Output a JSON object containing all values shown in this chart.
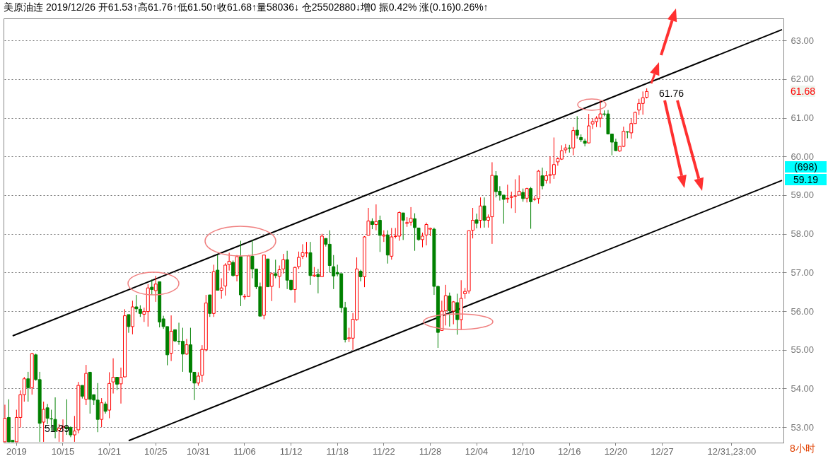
{
  "chart_data": {
    "type": "candlestick",
    "title": "美原油连 2019/12/26 开61.53↑高61.76↑低61.50↑收61.68↑量58036↓ 仓25502880↓增0 振0.42% 涨(0.16)0.26%↑",
    "categories": [
      null,
      null,
      null,
      "2019",
      null,
      null,
      null,
      null,
      null,
      null,
      null,
      null,
      null,
      null,
      null,
      "10/15",
      null,
      null,
      null,
      null,
      null,
      null,
      null,
      null,
      null,
      null,
      null,
      "10/21",
      null,
      null,
      null,
      null,
      null,
      null,
      null,
      null,
      null,
      null,
      null,
      "10/25",
      null,
      null,
      null,
      null,
      null,
      null,
      null,
      null,
      null,
      null,
      "10/31",
      null,
      null,
      null,
      null,
      null,
      null,
      null,
      null,
      null,
      null,
      null,
      "11/06",
      null,
      null,
      null,
      null,
      null,
      null,
      null,
      null,
      null,
      null,
      null,
      "11/12",
      null,
      null,
      null,
      null,
      null,
      null,
      null,
      null,
      null,
      null,
      null,
      "11/18",
      null,
      null,
      null,
      null,
      null,
      null,
      null,
      null,
      null,
      null,
      null,
      "11/22",
      null,
      null,
      null,
      null,
      null,
      null,
      null,
      null,
      null,
      null,
      null,
      "11/28",
      null,
      null,
      null,
      null,
      null,
      null,
      null,
      null,
      null,
      null,
      null,
      "12/04",
      null,
      null,
      null,
      null,
      null,
      null,
      null,
      null,
      null,
      null,
      null,
      "12/10",
      null,
      null,
      null,
      null,
      null,
      null,
      null,
      null,
      null,
      null,
      null,
      "12/16",
      null,
      null,
      null,
      null,
      null,
      null,
      null,
      null,
      null,
      null,
      null,
      "12/20",
      null,
      null,
      null,
      null,
      null,
      null,
      null,
      null,
      null,
      null,
      null,
      "12/27",
      null,
      null,
      null,
      null,
      null,
      null,
      null,
      null,
      null,
      null,
      null,
      null,
      null,
      null,
      null,
      null,
      null,
      "12/31,23:00",
      null,
      null,
      null,
      null,
      null,
      null,
      null,
      null,
      null,
      null,
      null,
      null,
      null
    ],
    "ohlc": [
      [
        52.62,
        53.58,
        52.62,
        53.23
      ],
      [
        53.25,
        53.72,
        52.62,
        52.62
      ],
      [
        52.66,
        52.66,
        52.62,
        52.62
      ],
      [
        52.62,
        53.45,
        52.62,
        53.25
      ],
      [
        53.25,
        53.95,
        52.99,
        53.84
      ],
      [
        53.84,
        54.3,
        53.66,
        54.25
      ],
      [
        54.25,
        54.43,
        53.66,
        54.02
      ],
      [
        54.02,
        54.92,
        53.84,
        54.9
      ],
      [
        54.87,
        54.9,
        54.2,
        54.23
      ],
      [
        54.23,
        54.43,
        52.62,
        53.1
      ],
      [
        53.13,
        53.66,
        52.62,
        53.46
      ],
      [
        53.5,
        53.6,
        53.08,
        53.23
      ],
      [
        53.22,
        53.45,
        52.9,
        53.21
      ],
      [
        53.2,
        53.77,
        52.71,
        52.9
      ],
      [
        52.92,
        53.08,
        52.62,
        52.97
      ],
      [
        53.0,
        53.2,
        52.62,
        53.01
      ],
      [
        53.0,
        53.72,
        52.8,
        52.97
      ],
      [
        52.99,
        53.02,
        52.74,
        52.8
      ],
      [
        52.8,
        53.29,
        52.62,
        52.9
      ],
      [
        52.93,
        54.17,
        52.84,
        54.08
      ],
      [
        54.08,
        54.08,
        53.74,
        53.8
      ],
      [
        53.72,
        54.61,
        53.57,
        54.39
      ],
      [
        54.42,
        54.43,
        53.35,
        53.72
      ],
      [
        53.84,
        53.84,
        53.57,
        53.7
      ],
      [
        53.7,
        54.14,
        52.87,
        53.2
      ],
      [
        53.2,
        53.75,
        53.0,
        53.63
      ],
      [
        53.6,
        53.66,
        53.35,
        53.41
      ],
      [
        53.44,
        54.42,
        53.23,
        54.13
      ],
      [
        54.17,
        54.78,
        53.87,
        54.29
      ],
      [
        54.29,
        54.3,
        53.96,
        54.11
      ],
      [
        54.12,
        54.54,
        53.61,
        54.29
      ],
      [
        54.3,
        56.05,
        54.29,
        55.88
      ],
      [
        55.91,
        55.91,
        55.44,
        55.6
      ],
      [
        55.6,
        56.27,
        55.4,
        56.11
      ],
      [
        56.11,
        56.42,
        55.97,
        56.06
      ],
      [
        56.05,
        56.15,
        55.85,
        55.94
      ],
      [
        55.92,
        56.09,
        55.72,
        55.99
      ],
      [
        55.99,
        56.7,
        55.6,
        56.6
      ],
      [
        56.62,
        56.82,
        56.42,
        56.56
      ],
      [
        56.53,
        56.91,
        56.24,
        56.7
      ],
      [
        56.76,
        56.76,
        55.58,
        55.72
      ],
      [
        55.8,
        55.88,
        55.54,
        55.6
      ],
      [
        55.6,
        55.6,
        54.6,
        54.87
      ],
      [
        54.91,
        55.89,
        54.71,
        55.48
      ],
      [
        55.52,
        55.52,
        55.2,
        55.23
      ],
      [
        55.22,
        55.7,
        55.13,
        55.21
      ],
      [
        55.22,
        55.57,
        54.43,
        54.89
      ],
      [
        54.89,
        55.28,
        54.87,
        55.13
      ],
      [
        55.13,
        55.57,
        54.19,
        54.42
      ],
      [
        54.42,
        54.42,
        53.7,
        54.14
      ],
      [
        54.14,
        54.42,
        54.07,
        54.32
      ],
      [
        54.34,
        55.12,
        54.17,
        55.01
      ],
      [
        55.0,
        56.42,
        54.96,
        56.21
      ],
      [
        56.42,
        56.42,
        55.85,
        55.94
      ],
      [
        55.94,
        57.2,
        55.85,
        57.02
      ],
      [
        57.06,
        57.45,
        56.54,
        56.54
      ],
      [
        56.54,
        56.85,
        56.32,
        56.6
      ],
      [
        56.65,
        57.24,
        56.4,
        57.19
      ],
      [
        57.2,
        57.51,
        57.05,
        57.29
      ],
      [
        57.26,
        57.31,
        56.89,
        56.92
      ],
      [
        56.92,
        57.45,
        56.77,
        57.41
      ],
      [
        57.41,
        57.82,
        56.13,
        56.42
      ],
      [
        56.37,
        56.44,
        56.3,
        56.38
      ],
      [
        56.38,
        57.45,
        56.38,
        57.43
      ],
      [
        57.42,
        57.84,
        56.85,
        57.09
      ],
      [
        57.09,
        57.09,
        56.57,
        56.63
      ],
      [
        56.63,
        56.74,
        55.87,
        55.87
      ],
      [
        55.89,
        57.45,
        55.79,
        57.45
      ],
      [
        57.35,
        57.35,
        56.63,
        56.63
      ],
      [
        56.64,
        57.0,
        56.26,
        56.97
      ],
      [
        56.97,
        57.33,
        56.85,
        56.92
      ],
      [
        56.9,
        57.18,
        56.6,
        57.07
      ],
      [
        57.09,
        57.48,
        56.97,
        57.33
      ],
      [
        57.33,
        57.56,
        56.57,
        56.8
      ],
      [
        56.8,
        56.8,
        56.53,
        56.56
      ],
      [
        56.56,
        57.15,
        56.22,
        57.13
      ],
      [
        57.15,
        57.54,
        57.09,
        57.39
      ],
      [
        57.42,
        57.73,
        57.35,
        57.51
      ],
      [
        57.5,
        57.79,
        57.39,
        57.51
      ],
      [
        57.51,
        57.79,
        56.68,
        56.92
      ],
      [
        56.91,
        57.14,
        56.88,
        56.93
      ],
      [
        56.95,
        57.09,
        56.46,
        56.89
      ],
      [
        56.89,
        58.0,
        56.89,
        57.94
      ],
      [
        57.88,
        57.88,
        57.67,
        57.73
      ],
      [
        57.73,
        58.09,
        57.0,
        57.18
      ],
      [
        57.15,
        57.45,
        56.57,
        56.91
      ],
      [
        57.0,
        57.2,
        56.9,
        56.96
      ],
      [
        56.97,
        56.97,
        55.96,
        56.09
      ],
      [
        56.09,
        56.24,
        55.19,
        55.26
      ],
      [
        55.29,
        55.57,
        55.2,
        55.31
      ],
      [
        55.3,
        55.95,
        55.0,
        55.79
      ],
      [
        55.78,
        57.39,
        55.75,
        57.09
      ],
      [
        57.03,
        57.07,
        56.77,
        56.89
      ],
      [
        56.89,
        57.94,
        56.62,
        57.92
      ],
      [
        57.96,
        58.67,
        57.96,
        58.33
      ],
      [
        58.32,
        58.4,
        58.12,
        58.24
      ],
      [
        58.24,
        58.76,
        58.09,
        58.32
      ],
      [
        58.35,
        58.47,
        57.53,
        57.96
      ],
      [
        57.94,
        58.09,
        57.79,
        57.97
      ],
      [
        57.97,
        58.09,
        57.23,
        57.45
      ],
      [
        57.42,
        58.15,
        57.33,
        57.92
      ],
      [
        57.93,
        58.15,
        57.88,
        57.94
      ],
      [
        57.94,
        58.58,
        57.82,
        58.55
      ],
      [
        58.54,
        58.54,
        57.84,
        58.35
      ],
      [
        58.27,
        58.43,
        58.18,
        58.29
      ],
      [
        58.3,
        58.69,
        58.21,
        58.4
      ],
      [
        58.39,
        58.53,
        57.56,
        58.16
      ],
      [
        58.15,
        58.15,
        57.82,
        57.85
      ],
      [
        57.85,
        58.03,
        57.65,
        57.94
      ],
      [
        57.97,
        58.29,
        57.7,
        58.24
      ],
      [
        58.12,
        58.16,
        57.94,
        58.14
      ],
      [
        58.12,
        58.16,
        56.42,
        56.64
      ],
      [
        56.64,
        56.66,
        55.05,
        55.45
      ],
      [
        55.5,
        56.27,
        55.5,
        56.0
      ],
      [
        56.01,
        56.68,
        55.63,
        56.4
      ],
      [
        56.39,
        56.48,
        55.6,
        56.01
      ],
      [
        56.0,
        56.26,
        55.66,
        56.24
      ],
      [
        56.22,
        56.45,
        55.39,
        55.78
      ],
      [
        55.78,
        56.8,
        55.51,
        56.33
      ],
      [
        56.45,
        56.6,
        56.32,
        56.51
      ],
      [
        56.52,
        58.08,
        56.45,
        58.08
      ],
      [
        58.09,
        58.67,
        57.88,
        58.35
      ],
      [
        58.36,
        58.52,
        58.14,
        58.27
      ],
      [
        58.35,
        58.94,
        58.15,
        58.72
      ],
      [
        58.72,
        58.94,
        58.16,
        58.35
      ],
      [
        58.35,
        58.5,
        58.16,
        58.43
      ],
      [
        58.44,
        59.85,
        57.74,
        59.51
      ],
      [
        59.5,
        59.62,
        58.94,
        59.09
      ],
      [
        59.1,
        59.23,
        58.86,
        59.0
      ],
      [
        59.0,
        59.0,
        58.26,
        58.89
      ],
      [
        58.9,
        59.27,
        58.8,
        58.92
      ],
      [
        58.94,
        59.09,
        58.66,
        58.96
      ],
      [
        58.97,
        59.41,
        58.54,
        58.98
      ],
      [
        59.0,
        59.51,
        59.0,
        59.1
      ],
      [
        59.07,
        59.17,
        58.83,
        58.91
      ],
      [
        58.92,
        59.19,
        58.81,
        59.17
      ],
      [
        59.17,
        59.21,
        58.13,
        58.83
      ],
      [
        58.89,
        58.98,
        58.85,
        58.9
      ],
      [
        58.91,
        59.65,
        58.78,
        59.62
      ],
      [
        59.5,
        59.71,
        59.15,
        59.24
      ],
      [
        59.38,
        59.62,
        59.3,
        59.5
      ],
      [
        59.51,
        60.0,
        59.3,
        59.53
      ],
      [
        59.53,
        60.49,
        59.42,
        59.79
      ],
      [
        59.86,
        59.98,
        59.76,
        59.94
      ],
      [
        59.93,
        60.29,
        59.91,
        60.15
      ],
      [
        60.17,
        60.32,
        60.08,
        60.22
      ],
      [
        60.22,
        60.3,
        60.1,
        60.21
      ],
      [
        60.22,
        60.76,
        60.03,
        60.67
      ],
      [
        60.68,
        61.04,
        60.46,
        60.55
      ],
      [
        60.49,
        60.57,
        60.37,
        60.43
      ],
      [
        60.4,
        60.46,
        60.26,
        60.34
      ],
      [
        60.35,
        61.1,
        60.34,
        60.79
      ],
      [
        60.84,
        60.98,
        60.71,
        60.9
      ],
      [
        60.9,
        61.04,
        60.76,
        60.99
      ],
      [
        60.99,
        61.43,
        60.75,
        61.1
      ],
      [
        61.1,
        61.19,
        61.04,
        61.09
      ],
      [
        61.1,
        61.2,
        60.57,
        60.58
      ],
      [
        60.58,
        60.58,
        60.03,
        60.37
      ],
      [
        60.37,
        60.46,
        60.14,
        60.15
      ],
      [
        60.14,
        60.26,
        60.12,
        60.26
      ],
      [
        60.26,
        60.77,
        60.24,
        60.65
      ],
      [
        60.64,
        60.65,
        60.47,
        60.63
      ],
      [
        60.61,
        60.98,
        60.46,
        60.85
      ],
      [
        60.85,
        61.16,
        60.85,
        61.14
      ],
      [
        61.2,
        61.49,
        61.07,
        61.37
      ],
      [
        61.37,
        61.68,
        61.08,
        61.52
      ],
      [
        61.53,
        61.76,
        61.5,
        61.68
      ],
      null,
      null,
      null,
      null,
      null,
      null,
      null,
      null,
      null,
      null,
      null,
      null,
      null,
      null,
      null,
      null,
      null,
      null,
      null,
      null,
      null,
      null,
      null,
      null,
      null,
      null,
      null,
      null,
      null,
      null,
      null,
      null,
      null,
      null,
      null
    ],
    "colors": [
      "#ff0000",
      "#008000",
      "#008000",
      "#ff0000",
      "#ff0000",
      "#ff0000",
      "#008000",
      "#ff0000",
      "#008000",
      "#008000",
      "#ff0000",
      "#008000",
      "#008000",
      "#008000",
      "#ff0000",
      "#ff0000",
      "#008000",
      "#008000",
      "#ff0000",
      "#ff0000",
      "#008000",
      "#ff0000",
      "#008000",
      "#008000",
      "#008000",
      "#ff0000",
      "#008000",
      "#ff0000",
      "#ff0000",
      "#008000",
      "#ff0000",
      "#ff0000",
      "#008000",
      "#ff0000",
      "#008000",
      "#008000",
      "#ff0000",
      "#ff0000",
      "#008000",
      "#ff0000",
      "#008000",
      "#008000",
      "#008000",
      "#ff0000",
      "#008000",
      "#008000",
      "#008000",
      "#ff0000",
      "#008000",
      "#008000",
      "#ff0000",
      "#ff0000",
      "#ff0000",
      "#008000",
      "#ff0000",
      "#008000",
      "#ff0000",
      "#ff0000",
      "#ff0000",
      "#008000",
      "#ff0000",
      "#008000",
      "#ff0000",
      "#ff0000",
      "#008000",
      "#008000",
      "#008000",
      "#ff0000",
      "#008000",
      "#ff0000",
      "#008000",
      "#ff0000",
      "#ff0000",
      "#008000",
      "#008000",
      "#ff0000",
      "#ff0000",
      "#ff0000",
      "#ff0000",
      "#008000",
      "#ff0000",
      "#008000",
      "#ff0000",
      "#008000",
      "#008000",
      "#008000",
      "#008000",
      "#008000",
      "#008000",
      "#ff0000",
      "#ff0000",
      "#ff0000",
      "#008000",
      "#ff0000",
      "#ff0000",
      "#008000",
      "#ff0000",
      "#008000",
      "#ff0000",
      "#008000",
      "#ff0000",
      "#ff0000",
      "#ff0000",
      "#008000",
      "#ff0000",
      "#ff0000",
      "#008000",
      "#008000",
      "#ff0000",
      "#ff0000",
      "#ff0000",
      "#008000",
      "#008000",
      "#ff0000",
      "#ff0000",
      "#008000",
      "#ff0000",
      "#008000",
      "#ff0000",
      "#ff0000",
      "#ff0000",
      "#ff0000",
      "#008000",
      "#ff0000",
      "#008000",
      "#ff0000",
      "#ff0000",
      "#008000",
      "#008000",
      "#008000",
      "#ff0000",
      "#ff0000",
      "#ff0000",
      "#ff0000",
      "#008000",
      "#ff0000",
      "#008000",
      "#ff0000",
      "#ff0000",
      "#008000",
      "#ff0000",
      "#ff0000",
      "#ff0000",
      "#ff0000",
      "#ff0000",
      "#ff0000",
      "#008000",
      "#ff0000",
      "#008000",
      "#008000",
      "#008000",
      "#ff0000",
      "#ff0000",
      "#ff0000",
      "#ff0000",
      "#008000",
      "#008000",
      "#008000",
      "#008000",
      "#ff0000",
      "#ff0000",
      "#008000",
      "#ff0000",
      "#ff0000",
      "#ff0000",
      "#ff0000",
      "#ff0000",
      null,
      null,
      null,
      null,
      null,
      null,
      null,
      null,
      null,
      null,
      null,
      null,
      null,
      null,
      null,
      null,
      null,
      null,
      null,
      null,
      null,
      null,
      null,
      null,
      null,
      null,
      null,
      null,
      null,
      null,
      null,
      null,
      null,
      null,
      null
    ],
    "series": [
      {
        "type": "line",
        "color": "#000000",
        "values": [
          null,
          null,
          55.36,
          null,
          null,
          null,
          null,
          null,
          null,
          null,
          null,
          null,
          null,
          null,
          null,
          null,
          null,
          null,
          null,
          null,
          null,
          null,
          null,
          null,
          null,
          null,
          null,
          null,
          null,
          null,
          null,
          null,
          null,
          null,
          null,
          null,
          null,
          null,
          null,
          null,
          null,
          null,
          null,
          null,
          null,
          null,
          null,
          null,
          null,
          null,
          null,
          null,
          null,
          null,
          null,
          null,
          null,
          null,
          null,
          null,
          null,
          null,
          null,
          null,
          null,
          null,
          null,
          null,
          null,
          null,
          null,
          null,
          null,
          null,
          null,
          null,
          null,
          null,
          null,
          null,
          null,
          null,
          null,
          null,
          null,
          null,
          null,
          null,
          null,
          null,
          null,
          null,
          null,
          null,
          null,
          null,
          null,
          null,
          null,
          null,
          null,
          null,
          null,
          null,
          null,
          null,
          null,
          null,
          null,
          null,
          null,
          null,
          null,
          null,
          null,
          null,
          null,
          null,
          null,
          null,
          null,
          null,
          null,
          null,
          null,
          null,
          null,
          null,
          null,
          null,
          null,
          null,
          null,
          null,
          null,
          null,
          null,
          null,
          null,
          null,
          null,
          null,
          null,
          null,
          null,
          null,
          null,
          null,
          null,
          null,
          null,
          null,
          null,
          null,
          null,
          null,
          null,
          null,
          null,
          null,
          null,
          null,
          null,
          null,
          null,
          null,
          null,
          null,
          null,
          null,
          null,
          null,
          null,
          null,
          null,
          null,
          null,
          null,
          null,
          null,
          null,
          null,
          null,
          null,
          null,
          null,
          null,
          null,
          null,
          null,
          null,
          null,
          null,
          null,
          null,
          null,
          null,
          null,
          null,
          null,
          null,
          63.28
        ]
      },
      {
        "type": "line",
        "color": "#000000",
        "values": [
          null,
          null,
          null,
          null,
          null,
          null,
          null,
          null,
          null,
          null,
          null,
          null,
          null,
          null,
          null,
          null,
          null,
          null,
          null,
          null,
          null,
          null,
          null,
          null,
          null,
          null,
          null,
          null,
          null,
          null,
          null,
          null,
          52.65,
          null,
          null,
          null,
          null,
          null,
          null,
          null,
          null,
          null,
          null,
          null,
          null,
          null,
          null,
          null,
          null,
          null,
          null,
          null,
          null,
          null,
          null,
          null,
          null,
          null,
          null,
          null,
          null,
          null,
          null,
          null,
          null,
          null,
          null,
          null,
          null,
          null,
          null,
          null,
          null,
          null,
          null,
          null,
          null,
          null,
          null,
          null,
          null,
          null,
          null,
          null,
          null,
          null,
          null,
          null,
          null,
          null,
          null,
          null,
          null,
          null,
          null,
          null,
          null,
          null,
          null,
          null,
          null,
          null,
          null,
          null,
          null,
          null,
          null,
          null,
          null,
          null,
          null,
          null,
          null,
          null,
          null,
          null,
          null,
          null,
          null,
          null,
          null,
          null,
          null,
          null,
          null,
          null,
          null,
          null,
          null,
          null,
          null,
          null,
          null,
          null,
          null,
          null,
          null,
          null,
          null,
          null,
          null,
          null,
          null,
          null,
          null,
          null,
          null,
          null,
          null,
          null,
          null,
          null,
          null,
          null,
          null,
          null,
          null,
          null,
          null,
          null,
          null,
          null,
          null,
          null,
          null,
          null,
          null,
          null,
          null,
          null,
          null,
          null,
          null,
          null,
          null,
          null,
          null,
          null,
          null,
          null,
          null,
          null,
          null,
          null,
          null,
          null,
          null,
          null,
          null,
          null,
          null,
          null,
          null,
          null,
          null,
          null,
          null,
          null,
          null,
          null,
          null,
          59.38
        ]
      }
    ],
    "ylim": [
      52.6,
      63.57
    ],
    "yticks": [
      {
        "value": 53,
        "label": "53.00"
      },
      {
        "value": 54,
        "label": "54.00"
      },
      {
        "value": 55,
        "label": "55.00"
      },
      {
        "value": 56,
        "label": "56.00"
      },
      {
        "value": 57,
        "label": "57.00"
      },
      {
        "value": 58,
        "label": "58.00"
      },
      {
        "value": 59,
        "label": "59.00"
      },
      {
        "value": 60,
        "label": "60.00"
      },
      {
        "value": 61,
        "label": "61.00"
      },
      {
        "value": 62,
        "label": "62.00"
      },
      {
        "value": 63,
        "label": "63.00"
      }
    ],
    "grid": "y",
    "annotations": [
      "51.39",
      "61.76",
      "61.68",
      "(698)",
      "59.19",
      "8小时"
    ]
  }
}
